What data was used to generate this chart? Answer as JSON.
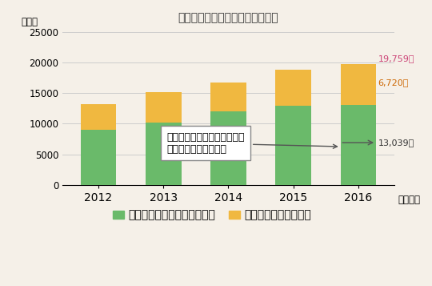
{
  "title": "新築等住宅に関する相談件数推移",
  "years": [
    "2012",
    "2013",
    "2014",
    "2015",
    "2016"
  ],
  "green_values": [
    9000,
    10200,
    12000,
    13000,
    13039
  ],
  "orange_values": [
    4200,
    5000,
    4700,
    5800,
    6720
  ],
  "green_color": "#6aba6a",
  "orange_color": "#f0b840",
  "bar_width": 0.55,
  "ylim": [
    0,
    25000
  ],
  "yticks": [
    0,
    5000,
    10000,
    15000,
    20000,
    25000
  ],
  "ylabel": "（件）",
  "xlabel": "（年度）",
  "legend_label_green": "住宅のトラブルに関する相談",
  "legend_label_orange": "知見相談、その他相談",
  "annotation_text": "不具合、契約、住宅部品に関\nするトラブル相談件数",
  "label_2016_total": "19,759件",
  "label_2016_orange": "6,720件",
  "label_2016_green": "13,039件",
  "bg_color": "#f5f0e8",
  "grid_color": "#cccccc",
  "title_color": "#333333",
  "title_fontsize": 13,
  "axis_fontsize": 8.5,
  "label_fontsize": 8,
  "annotation_fontsize": 9,
  "legend_fontsize": 8.5
}
